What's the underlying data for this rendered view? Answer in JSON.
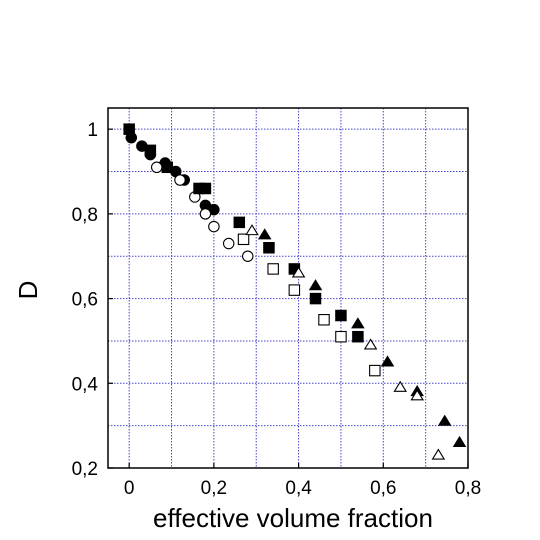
{
  "chart_data": {
    "type": "scatter",
    "xlabel": "effective volume fraction",
    "ylabel": "D",
    "xlim": [
      -0.05,
      0.8
    ],
    "ylim": [
      0.2,
      1.05
    ],
    "grid": true,
    "grid_color": "#4444cc",
    "xticks": [
      0,
      0.2,
      0.4,
      0.6,
      0.8
    ],
    "xtick_labels": [
      "0",
      "0,2",
      "0,4",
      "0,6",
      "0,8"
    ],
    "yticks": [
      0.2,
      0.4,
      0.6,
      0.8,
      1
    ],
    "ytick_labels": [
      "0,2",
      "0,4",
      "0,6",
      "0,8",
      "1"
    ],
    "series": [
      {
        "marker": "filled-circle",
        "x": [
          0.005,
          0.03,
          0.05,
          0.085,
          0.11,
          0.13,
          0.18,
          0.2
        ],
        "y": [
          0.98,
          0.96,
          0.94,
          0.92,
          0.9,
          0.88,
          0.82,
          0.81
        ]
      },
      {
        "marker": "open-circle",
        "x": [
          0.065,
          0.12,
          0.155,
          0.18,
          0.2,
          0.235,
          0.28
        ],
        "y": [
          0.91,
          0.88,
          0.84,
          0.8,
          0.77,
          0.73,
          0.7
        ]
      },
      {
        "marker": "filled-square",
        "x": [
          0,
          0.05,
          0.09,
          0.165,
          0.18,
          0.26,
          0.33,
          0.39,
          0.44,
          0.5,
          0.54
        ],
        "y": [
          1.0,
          0.95,
          0.91,
          0.86,
          0.86,
          0.78,
          0.72,
          0.67,
          0.6,
          0.56,
          0.51
        ],
        "size": [
          1,
          1,
          1,
          1,
          1,
          1,
          1,
          1,
          1,
          1,
          1
        ]
      },
      {
        "marker": "open-square",
        "x": [
          0.27,
          0.34,
          0.39,
          0.46,
          0.5,
          0.58
        ],
        "y": [
          0.74,
          0.67,
          0.62,
          0.55,
          0.51,
          0.43
        ]
      },
      {
        "marker": "filled-triangle",
        "x": [
          0.32,
          0.44,
          0.54,
          0.61,
          0.68,
          0.745,
          0.78
        ],
        "y": [
          0.75,
          0.63,
          0.54,
          0.45,
          0.38,
          0.31,
          0.26
        ]
      },
      {
        "marker": "open-triangle",
        "x": [
          0.29,
          0.4,
          0.57,
          0.64,
          0.68,
          0.73
        ],
        "y": [
          0.76,
          0.66,
          0.49,
          0.39,
          0.37,
          0.23
        ]
      }
    ]
  }
}
